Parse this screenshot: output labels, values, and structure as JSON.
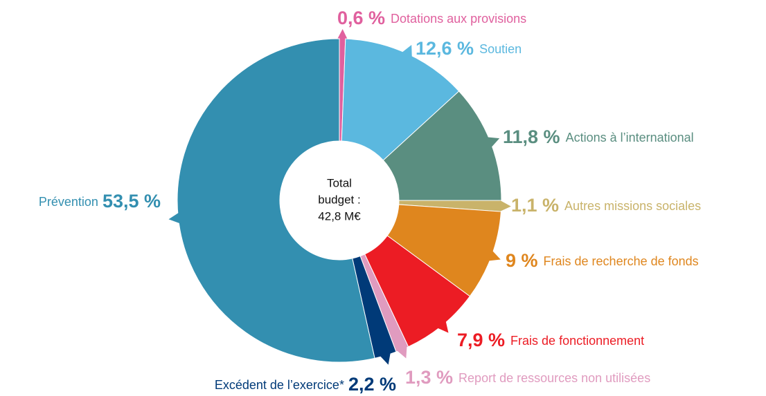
{
  "chart_data": {
    "type": "donut",
    "categories": [
      "Dotations aux provisions",
      "Soutien",
      "Actions à l’international",
      "Autres missions sociales",
      "Frais de recherche de fonds",
      "Frais de fonctionnement",
      "Report de ressources non utilisées",
      "Excédent de l’exercice*",
      "Prévention"
    ],
    "values": [
      0.6,
      12.6,
      11.8,
      1.1,
      9,
      7.9,
      1.3,
      2.2,
      53.5
    ],
    "value_labels": [
      "0,6 %",
      "12,6 %",
      "11,8 %",
      "1,1 %",
      "9 %",
      "7,9 %",
      "1,3 %",
      "2,2 %",
      "53,5 %"
    ],
    "colors": [
      "#e0609e",
      "#5bb8df",
      "#5a8e80",
      "#c9b36a",
      "#df861e",
      "#ec1c24",
      "#e09bbf",
      "#003a78",
      "#338fb0"
    ],
    "center_label": [
      "Total",
      "budget :",
      "42,8 M€"
    ]
  }
}
